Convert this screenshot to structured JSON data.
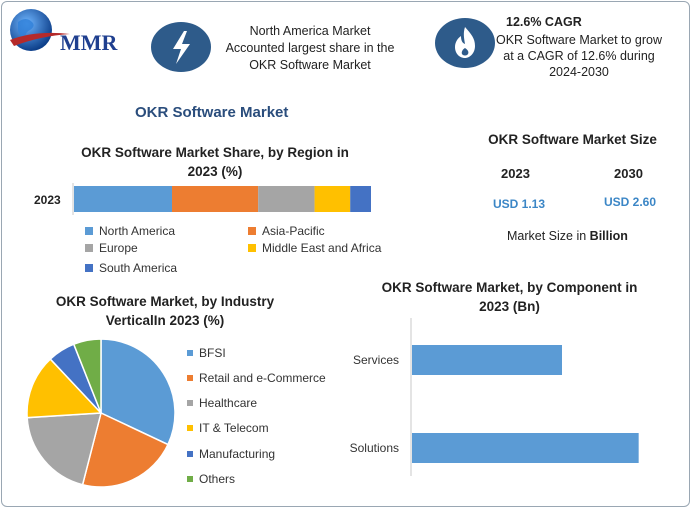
{
  "logo": {
    "text": "MMR"
  },
  "header": {
    "info1": [
      "North America Market",
      "Accounted largest share in the",
      "OKR Software Market"
    ],
    "info2_title": "12.6% CAGR",
    "info2": [
      "OKR Software Market to grow",
      "at a CAGR of 12.6% during",
      "2024-2030"
    ]
  },
  "main_title": "OKR Software Market",
  "region": {
    "title": [
      "OKR Software Market Share, by Region in",
      "2023 (%)"
    ],
    "year": "2023"
  },
  "size": {
    "title": "OKR Software Market Size",
    "year1": "2023",
    "year2": "2030",
    "value1": "USD 1.13",
    "value2": "USD 2.60",
    "note": "Market Size in ",
    "note_bold": "Billion"
  },
  "vertical": {
    "title": [
      "OKR Software Market, by Industry",
      "VerticalIn 2023 (%)"
    ]
  },
  "component": {
    "title": [
      "OKR Software Market, by Component in",
      "2023 (Bn)"
    ]
  },
  "chart_data": [
    {
      "type": "bar",
      "stacked": true,
      "orientation": "horizontal",
      "categories": [
        "2023"
      ],
      "series": [
        {
          "name": "North America",
          "values": [
            33
          ],
          "color": "#5b9bd5"
        },
        {
          "name": "Asia-Pacific",
          "values": [
            29
          ],
          "color": "#ed7d31"
        },
        {
          "name": "Europe",
          "values": [
            19
          ],
          "color": "#a5a5a5"
        },
        {
          "name": "Middle East and Africa",
          "values": [
            12
          ],
          "color": "#ffc000"
        },
        {
          "name": "South America",
          "values": [
            7
          ],
          "color": "#4472c4"
        }
      ],
      "xlim": [
        0,
        100
      ],
      "legend": "bottom"
    },
    {
      "type": "pie",
      "labels": [
        "BFSI",
        "Retail and e-Commerce",
        "Healthcare",
        "IT & Telecom",
        "Manufacturing",
        "Others"
      ],
      "values": [
        32,
        22,
        20,
        14,
        6,
        6
      ],
      "colors": [
        "#5b9bd5",
        "#ed7d31",
        "#a5a5a5",
        "#ffc000",
        "#4472c4",
        "#70ad47"
      ],
      "legend": "right"
    },
    {
      "type": "bar",
      "orientation": "horizontal",
      "categories": [
        "Services",
        "Solutions"
      ],
      "values": [
        0.45,
        0.68
      ],
      "color": "#5b9bd5",
      "xlim": [
        0,
        0.75
      ],
      "grid": false
    }
  ]
}
